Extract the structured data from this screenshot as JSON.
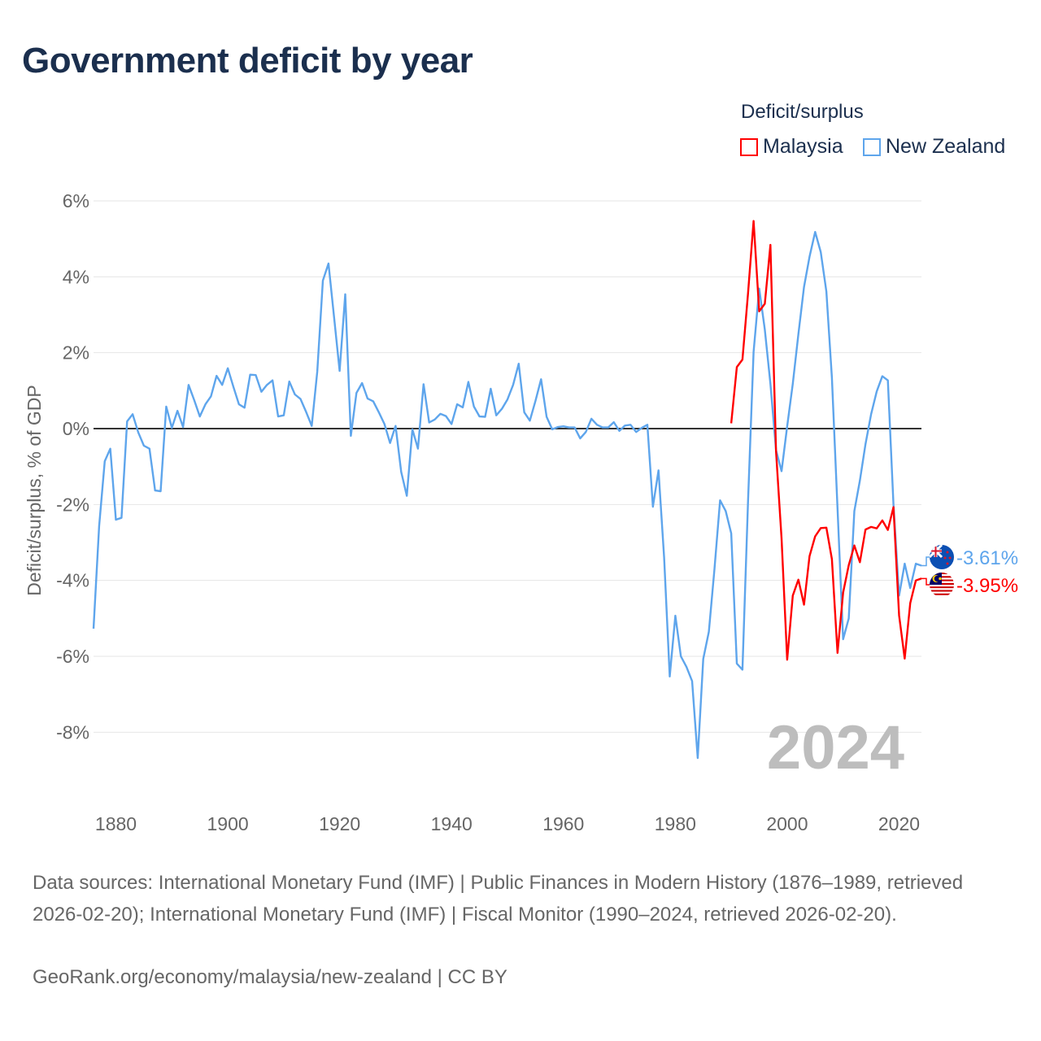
{
  "title": "Government deficit by year",
  "legend": {
    "title": "Deficit/surplus",
    "items": [
      {
        "name": "Malaysia",
        "color": "#ff0000"
      },
      {
        "name": "New Zealand",
        "color": "#5ea5ec"
      }
    ]
  },
  "year_watermark": "2024",
  "footer": {
    "sources": "Data sources: International Monetary Fund (IMF) | Public Finances in Modern History (1876–1989, retrieved 2026-02-20); International Monetary Fund (IMF) | Fiscal Monitor (1990–2024, retrieved 2026-02-20).",
    "credit": "GeoRank.org/economy/malaysia/new-zealand | CC BY"
  },
  "chart_data": {
    "type": "line",
    "title": "Government deficit by year",
    "xlabel": "",
    "ylabel": "Deficit/surplus, % of GDP",
    "xlim": [
      1876,
      2024
    ],
    "ylim": [
      -9.5,
      6.4
    ],
    "grid": true,
    "legend_position": "top-right",
    "x_ticks": [
      1880,
      1900,
      1920,
      1940,
      1960,
      1980,
      2000,
      2020
    ],
    "x_tick_labels": [
      "1880",
      "1900",
      "1920",
      "1940",
      "1960",
      "1980",
      "2000",
      "2020"
    ],
    "y_ticks": [
      6,
      4,
      2,
      0,
      -2,
      -4,
      -6,
      -8
    ],
    "y_tick_labels": [
      "6%",
      "4%",
      "2%",
      "0%",
      "-2%",
      "-4%",
      "-6%",
      "-8%"
    ],
    "series": [
      {
        "name": "New Zealand",
        "color": "#5ea5ec",
        "start_year": 1876,
        "end_label": "-3.61%",
        "values": [
          -5.27,
          -2.57,
          -0.86,
          -0.53,
          -2.4,
          -2.35,
          0.19,
          0.38,
          -0.1,
          -0.45,
          -0.53,
          -1.63,
          -1.65,
          0.58,
          0.02,
          0.47,
          0.04,
          1.15,
          0.75,
          0.32,
          0.64,
          0.85,
          1.39,
          1.15,
          1.59,
          1.1,
          0.64,
          0.55,
          1.42,
          1.41,
          0.97,
          1.15,
          1.27,
          0.32,
          0.35,
          1.24,
          0.9,
          0.78,
          0.44,
          0.07,
          1.5,
          3.9,
          4.35,
          2.93,
          1.52,
          3.54,
          -0.19,
          0.94,
          1.2,
          0.79,
          0.72,
          0.43,
          0.12,
          -0.38,
          0.07,
          -1.14,
          -1.77,
          -0.02,
          -0.53,
          1.17,
          0.16,
          0.24,
          0.39,
          0.33,
          0.12,
          0.64,
          0.56,
          1.23,
          0.58,
          0.32,
          0.31,
          1.05,
          0.35,
          0.52,
          0.77,
          1.15,
          1.71,
          0.43,
          0.21,
          0.73,
          1.3,
          0.31,
          -0.02,
          0.04,
          0.06,
          0.03,
          0.03,
          -0.26,
          -0.09,
          0.26,
          0.1,
          0.03,
          0.03,
          0.17,
          -0.06,
          0.08,
          0.1,
          -0.09,
          0.02,
          0.1,
          -2.06,
          -1.1,
          -3.4,
          -6.53,
          -4.93,
          -6.0,
          -6.28,
          -6.65,
          -8.68,
          -6.07,
          -5.35,
          -3.7,
          -1.89,
          -2.17,
          -2.76,
          -6.19,
          -6.35,
          -1.9,
          2.02,
          3.69,
          2.61,
          1.18,
          -0.57,
          -1.12,
          0.06,
          1.18,
          2.49,
          3.73,
          4.53,
          5.18,
          4.65,
          3.61,
          1.34,
          -2.1,
          -5.55,
          -5.0,
          -2.17,
          -1.37,
          -0.41,
          0.38,
          0.98,
          1.38,
          1.27,
          -2.0,
          -4.4,
          -3.56,
          -4.2,
          -3.56,
          -3.61
        ]
      },
      {
        "name": "Malaysia",
        "color": "#ff0000",
        "start_year": 1990,
        "end_label": "-3.95%",
        "values": [
          0.14,
          1.62,
          1.82,
          3.57,
          5.47,
          3.09,
          3.29,
          4.84,
          -0.6,
          -2.9,
          -6.09,
          -4.4,
          -3.98,
          -4.64,
          -3.36,
          -2.84,
          -2.62,
          -2.61,
          -3.44,
          -5.91,
          -4.32,
          -3.6,
          -3.08,
          -3.52,
          -2.66,
          -2.59,
          -2.63,
          -2.42,
          -2.67,
          -2.07,
          -4.92,
          -6.06,
          -4.6,
          -4.0,
          -3.95
        ]
      }
    ]
  }
}
